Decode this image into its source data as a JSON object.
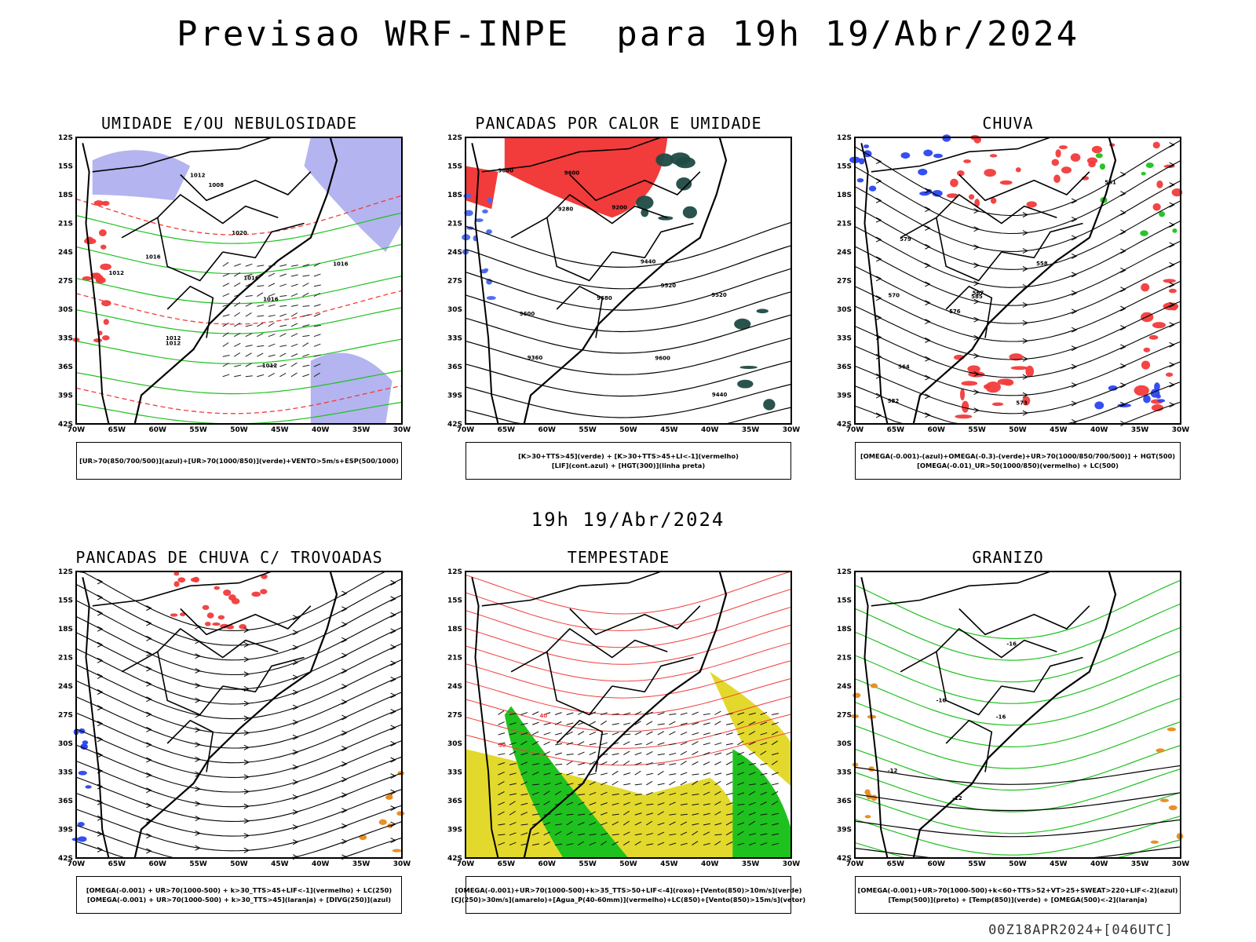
{
  "header": {
    "title": "Previsao WRF-INPE  para 19h 19/Abr/2024"
  },
  "middle_label": "19h 19/Abr/2024",
  "footer_code": "00Z18APR2024+[046UTC]",
  "axes": {
    "lat_labels": [
      "12S",
      "15S",
      "18S",
      "21S",
      "24S",
      "27S",
      "30S",
      "33S",
      "36S",
      "39S",
      "42S"
    ],
    "lon_labels": [
      "70W",
      "65W",
      "60W",
      "55W",
      "50W",
      "45W",
      "40W",
      "35W",
      "30W"
    ]
  },
  "panels": [
    {
      "title": "UMIDADE E/OU NEBULOSIDADE",
      "legend": [
        "[UR>70(850/700/500)](azul)+[UR>70(1000/850)](verde)+VENTO>5m/s+ESP(500/1000)"
      ],
      "contour_labels": [
        "1012",
        "1012",
        "1016",
        "1016",
        "1020",
        "1012",
        "1016",
        "1012",
        "1008",
        "1012",
        "1016"
      ]
    },
    {
      "title": "PANCADAS POR CALOR E UMIDADE",
      "legend": [
        "[K>30+TTS>45](verde) + [K>30+TTS>45+LI<-1](vermelho)",
        "[LIF](cont.azul) + [HGT(300)](linha preta)"
      ],
      "contour_labels": [
        "9680",
        "9680",
        "9600",
        "9600",
        "9520",
        "9440",
        "9360",
        "9280",
        "9200",
        "9520",
        "9600",
        "9440"
      ]
    },
    {
      "title": "CHUVA",
      "legend": [
        "[OMEGA(-0.001)-(azul)+OMEGA(-0.3)-(verde)+UR>70(1000/850/700/500)] + HGT(500)",
        "[OMEGA(-0.01)_UR>50(1000/850)(vermelho) + LC(500)"
      ],
      "contour_labels": [
        "582",
        "579",
        "576",
        "573",
        "570",
        "567",
        "564",
        "561",
        "558",
        "585"
      ]
    },
    {
      "title": "PANCADAS DE CHUVA C/ TROVOADAS",
      "legend": [
        "[OMEGA(-0.001) + UR>70(1000-500) + k>30_TTS>45+LIF<-1](vermelho) + LC(250)",
        "[OMEGA(-0.001) + UR>70(1000-500) + k>30_TTS>45](laranja) + [DIVG(250)](azul)"
      ],
      "contour_labels": []
    },
    {
      "title": "TEMPESTADE",
      "legend": [
        "[OMEGA(-0.001)+UR>70(1000-500)+k>35_TTS>50+LIF<-4](roxo)+[Vento(850)>10m/s](verde)",
        "[CJ(250)>30m/s](amarelo)+[Agua_P(40-60mm)](vermelho)+LC(850)+[Vento(850)>15m/s](vetor)"
      ],
      "contour_labels": [
        "50",
        "40"
      ]
    },
    {
      "title": "GRANIZO",
      "legend": [
        "[OMEGA(-0.001)+UR>70(1000-500)+k<60+TTS>52+VT>25+SWEAT>220+LIF<-2](azul)",
        "[Temp(500)](preto) + [Temp(850)](verde) + [OMEGA(500)<-2](laranja)"
      ],
      "contour_labels": [
        "-12",
        "-12",
        "-16",
        "-16",
        "-16"
      ]
    }
  ],
  "colors": {
    "red": "#f23b3b",
    "green": "#1fc11f",
    "blue": "#2b46f0",
    "lavender": "#b4b4f0",
    "dark_teal": "#1f4a44",
    "yellow": "#e3d92c",
    "orange": "#e88a1c",
    "black": "#000000"
  }
}
